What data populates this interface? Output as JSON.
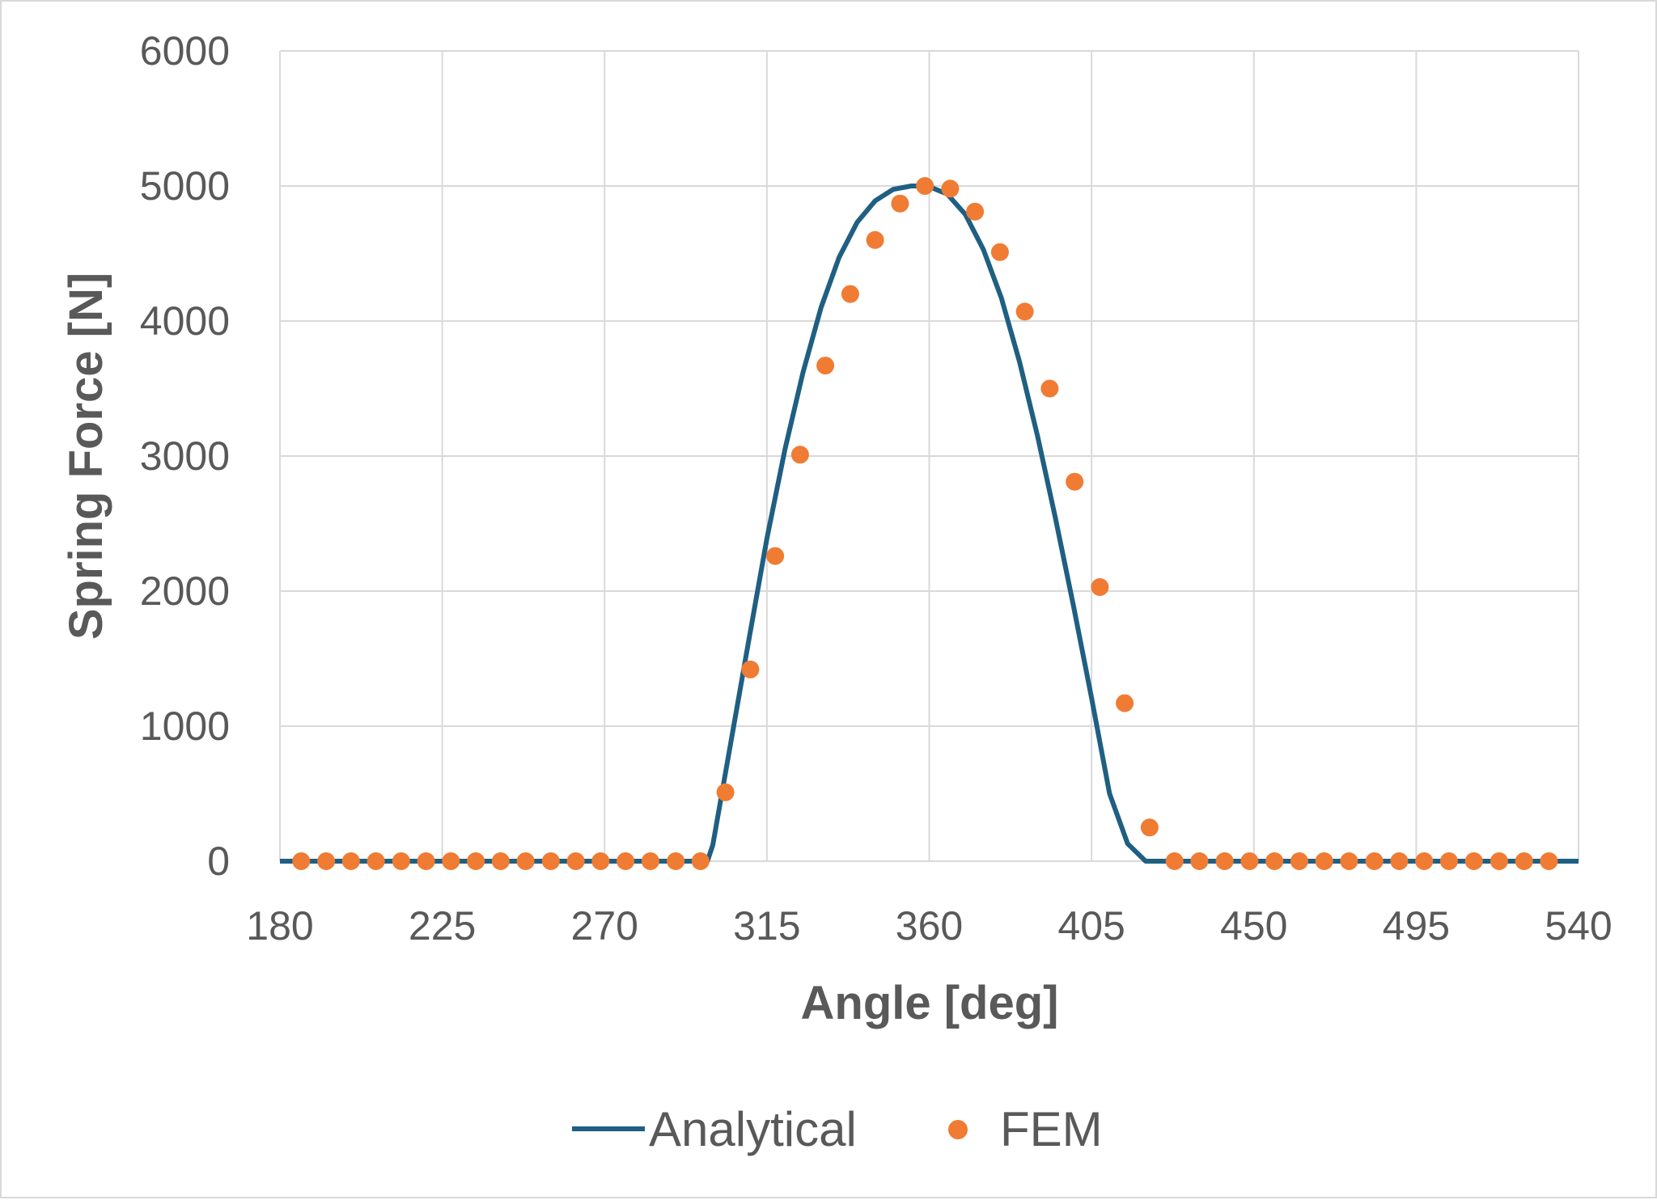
{
  "chart_data": {
    "type": "line",
    "xlabel": "Angle [deg]",
    "ylabel": "Spring Force [N]",
    "xlim": [
      180,
      540
    ],
    "ylim": [
      0,
      6000
    ],
    "x_ticks": [
      180,
      225,
      270,
      315,
      360,
      405,
      450,
      495,
      540
    ],
    "y_ticks": [
      0,
      1000,
      2000,
      3000,
      4000,
      5000,
      6000
    ],
    "grid": true,
    "legend": "bottom",
    "colors": {
      "analytical": "#1f5f82",
      "fem": "#f07b33",
      "grid": "#d9d9d9",
      "text": "#595959"
    },
    "series": [
      {
        "name": "Analytical",
        "style": "line",
        "x": [
          180,
          298.5,
          300,
          305,
          310,
          315,
          320,
          325,
          330,
          335,
          340,
          345,
          350,
          355,
          358,
          360,
          365,
          370,
          375,
          380,
          385,
          390,
          395,
          400,
          405,
          410,
          415,
          420,
          421.5,
          540
        ],
        "y": [
          0,
          0,
          120,
          880,
          1640,
          2390,
          3050,
          3620,
          4100,
          4470,
          4730,
          4890,
          4975,
          5000,
          5000,
          4995,
          4940,
          4790,
          4530,
          4170,
          3700,
          3150,
          2540,
          1890,
          1210,
          500,
          130,
          0,
          0,
          0
        ]
      },
      {
        "name": "FEM",
        "style": "markers",
        "x": [
          185.9,
          192.8,
          199.7,
          206.6,
          213.6,
          220.5,
          227.4,
          234.3,
          241.2,
          248.1,
          255.1,
          262.0,
          268.9,
          275.8,
          282.7,
          289.7,
          296.6,
          303.5,
          310.4,
          317.3,
          324.2,
          331.2,
          338.1,
          345.0,
          351.9,
          358.8,
          365.8,
          372.7,
          379.6,
          386.5,
          393.4,
          400.3,
          407.3,
          414.2,
          421.1,
          428.0,
          434.9,
          441.9,
          448.8,
          455.7,
          462.6,
          469.5,
          476.4,
          483.4,
          490.3,
          497.2,
          504.1,
          511.0,
          518.0,
          524.9,
          531.8
        ],
        "y": [
          0,
          0,
          0,
          0,
          0,
          0,
          0,
          0,
          0,
          0,
          0,
          0,
          0,
          0,
          0,
          0,
          0,
          510,
          1420,
          2260,
          3010,
          3670,
          4200,
          4600,
          4870,
          5000,
          4980,
          4810,
          4510,
          4070,
          3500,
          2810,
          2030,
          1170,
          250,
          0,
          0,
          0,
          0,
          0,
          0,
          0,
          0,
          0,
          0,
          0,
          0,
          0,
          0,
          0,
          0
        ]
      }
    ]
  }
}
